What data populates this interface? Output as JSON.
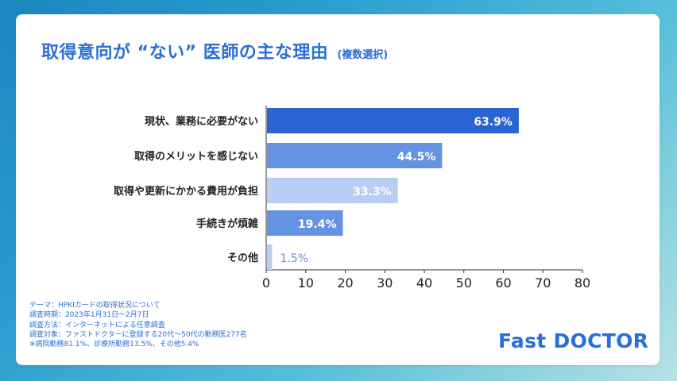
{
  "header": {
    "title": "取得意向が “ない” 医師の主な理由",
    "subtitle": "(複数選択)"
  },
  "chart_data": {
    "type": "bar",
    "orientation": "horizontal",
    "categories": [
      "現状、業務に必要がない",
      "取得のメリットを感じない",
      "取得や更新にかかる費用が負担",
      "手続きが煩雑",
      "その他"
    ],
    "values": [
      63.9,
      44.5,
      33.3,
      19.4,
      1.5
    ],
    "value_labels": [
      "63.9%",
      "44.5%",
      "33.3%",
      "19.4%",
      "1.5%"
    ],
    "bar_colors": [
      "#2a63d4",
      "#6593e3",
      "#b7cdf3",
      "#6593e3",
      "#b7cdf3"
    ],
    "xlim": [
      0,
      80
    ],
    "xticks": [
      "0",
      "10",
      "20",
      "30",
      "40",
      "50",
      "60",
      "70",
      "80"
    ],
    "grid": false,
    "title": "",
    "xlabel": "",
    "ylabel": ""
  },
  "notes": {
    "lines": [
      "テーマ：HPKIカードの取得状況について",
      "調査時期：2023年1月31日〜2月7日",
      "調査方法：インターネットによる任意調査",
      "調査対象：ファストドクターに登録する20代〜50代の勤務医277名",
      "※病院勤務81.1%、診療所勤務13.5%、その他5.4%"
    ]
  },
  "brand": {
    "logo_text": "Fast DOCTOR"
  },
  "colors": {
    "accent": "#2a6fd6",
    "label_dark": "#222222",
    "label_light": "#ffffff",
    "label_small": "#6b8ed6"
  }
}
